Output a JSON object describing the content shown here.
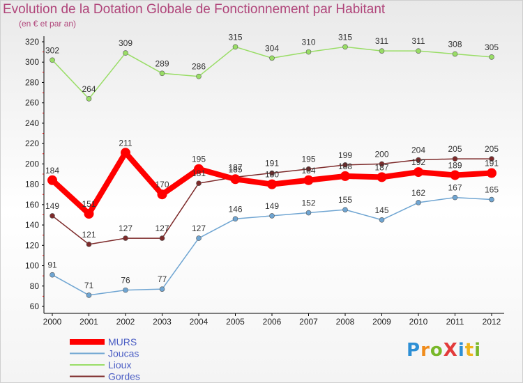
{
  "title": "Evolution de la Dotation Globale de Fonctionnement par Habitant",
  "subtitle": "(en € et par an)",
  "logo": {
    "text": "ProXiti",
    "letters": [
      {
        "ch": "P",
        "color": "#2d8fd5"
      },
      {
        "ch": "r",
        "color": "#f08c1c"
      },
      {
        "ch": "o",
        "color": "#79b82a"
      },
      {
        "ch": "X",
        "color": "#e33b3b"
      },
      {
        "ch": "i",
        "color": "#2d8fd5"
      },
      {
        "ch": "t",
        "color": "#f0b41c"
      },
      {
        "ch": "i",
        "color": "#79b82a"
      }
    ]
  },
  "chart_data": {
    "type": "line",
    "title": "Evolution de la Dotation Globale de Fonctionnement par Habitant",
    "subtitle": "(en € et par an)",
    "xlabel": "",
    "ylabel": "",
    "x": [
      "2000",
      "2001",
      "2002",
      "2003",
      "2004",
      "2005",
      "2006",
      "2007",
      "2008",
      "2009",
      "2010",
      "2011",
      "2012"
    ],
    "ylim": [
      60,
      320
    ],
    "yticks": [
      60,
      80,
      100,
      120,
      140,
      160,
      180,
      200,
      220,
      240,
      260,
      280,
      300,
      320
    ],
    "grid": false,
    "legend_position": "bottom-left",
    "series": [
      {
        "name": "MURS",
        "color": "#ff0000",
        "emphasis": true,
        "values": [
          184,
          151,
          211,
          170,
          195,
          185,
          180,
          184,
          188,
          187,
          192,
          189,
          191
        ],
        "labels": [
          "184",
          "151",
          "211",
          "170",
          "195",
          "185",
          "180",
          "184",
          "188",
          "187",
          "192",
          "189",
          "191"
        ]
      },
      {
        "name": "Joucas",
        "color": "#6fa5d2",
        "values": [
          91,
          71,
          76,
          77,
          127,
          146,
          149,
          152,
          155,
          145,
          162,
          167,
          165
        ],
        "labels": [
          "91",
          "71",
          "76",
          "77",
          "127",
          "146",
          "149",
          "152",
          "155",
          "145",
          "162",
          "167",
          "165"
        ]
      },
      {
        "name": "Lioux",
        "color": "#99dd66",
        "values": [
          302,
          264,
          309,
          289,
          286,
          315,
          304,
          310,
          315,
          311,
          311,
          308,
          305
        ],
        "labels": [
          "302",
          "264",
          "309",
          "289",
          "286",
          "315",
          "304",
          "310",
          "315",
          "311",
          "311",
          "308",
          "305"
        ]
      },
      {
        "name": "Gordes",
        "color": "#7d2a2a",
        "values": [
          149,
          121,
          127,
          127,
          181,
          187,
          191,
          195,
          199,
          200,
          204,
          205,
          205
        ],
        "labels": [
          "149",
          "121",
          "127",
          "127",
          "181",
          "187",
          "191",
          "195",
          "199",
          "200",
          "204",
          "205",
          "205"
        ]
      }
    ]
  }
}
